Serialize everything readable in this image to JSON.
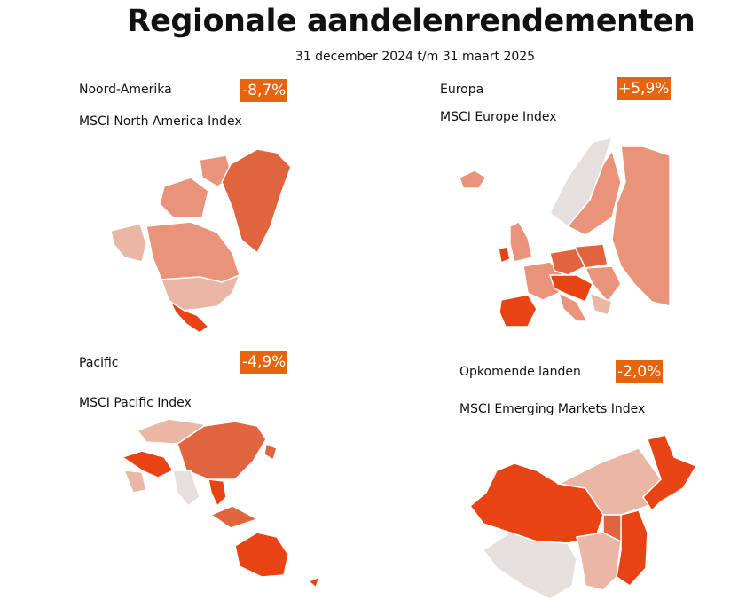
{
  "header": {
    "title": "Regionale aandelenrendementen",
    "subtitle": "31 december 2024 t/m 31 maart 2025"
  },
  "panels": [
    {
      "name": "Noord-Amerika",
      "return": "-8,7%",
      "index": "MSCI North America Index"
    },
    {
      "name": "Europa",
      "return": "+5,9%",
      "index": "MSCI Europe Index"
    },
    {
      "name": "Pacific",
      "return": "-4,9%",
      "index": "MSCI Pacific Index"
    },
    {
      "name": "Opkomende landen",
      "return": "-2,0%",
      "index": "MSCI Emerging Markets Index"
    }
  ]
}
